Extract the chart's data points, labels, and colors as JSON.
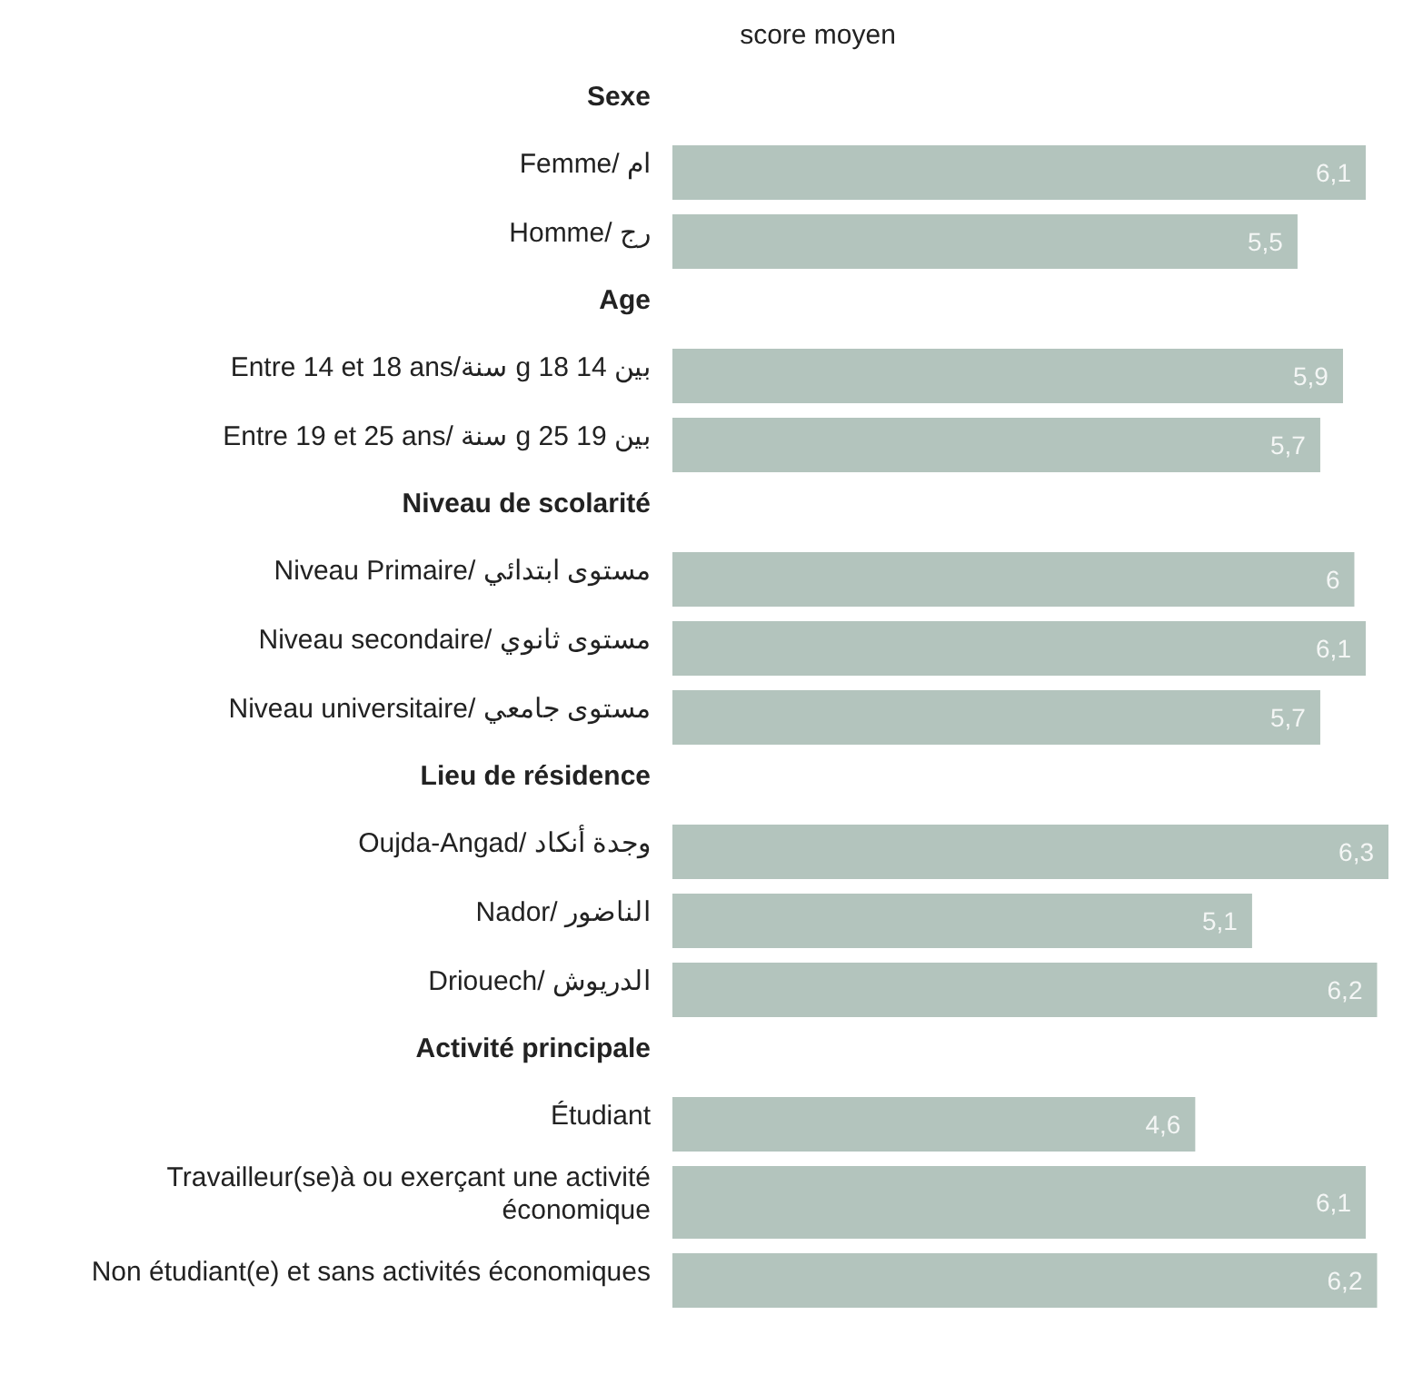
{
  "chart_data": {
    "type": "bar",
    "orientation": "horizontal",
    "title": "score moyen",
    "categories": [
      "Sexe",
      "ام /Femme",
      "رج /Homme",
      "Age",
      "بين 14 g 18 سنة/Entre 14 et 18 ans",
      "بين 19 g 25 سنة /Entre 19 et 25 ans",
      "Niveau de scolarité",
      "مستوى ابتدائي /Niveau Primaire",
      "مستوى ثانوي /Niveau secondaire",
      "مستوى جامعي /Niveau universitaire",
      "Lieu de résidence",
      "وجدة أنكاد /Oujda-Angad",
      "الناضور /Nador",
      "الدريوش /Driouech",
      "Activité principale",
      "Étudiant",
      "Travailleur(se)à ou exerçant une activité économique",
      "Non étudiant(e) et sans activités économiques"
    ],
    "values": [
      null,
      6.1,
      5.5,
      null,
      5.9,
      5.7,
      null,
      6,
      6.1,
      5.7,
      null,
      6.3,
      5.1,
      6.2,
      null,
      4.6,
      6.1,
      6.2
    ],
    "value_labels": [
      null,
      "6,1",
      "5,5",
      null,
      "5,9",
      "5,7",
      null,
      "6",
      "6,1",
      "5,7",
      null,
      "6,3",
      "5,1",
      "6,2",
      null,
      "4,6",
      "6,1",
      "6,2"
    ],
    "color": "#b3c4bd"
  }
}
